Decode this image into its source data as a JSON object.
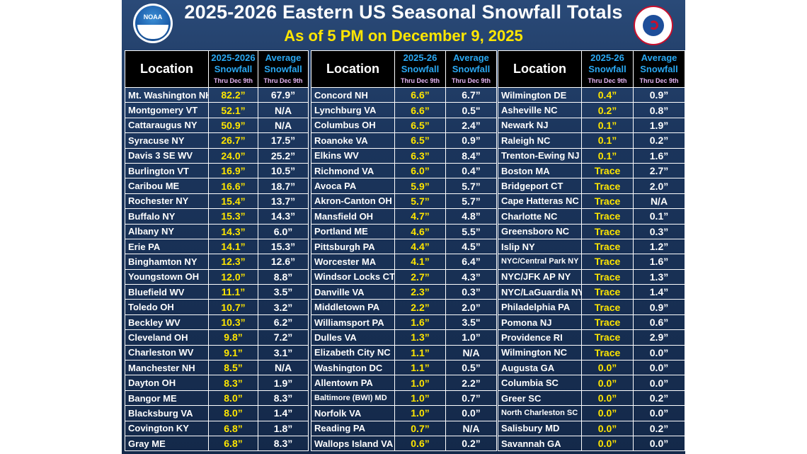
{
  "title": "2025-2026 Eastern US Seasonal Snowfall Totals",
  "subtitle": "As of 5 PM on December 9, 2025",
  "logos": {
    "left": "NOAA",
    "right": "NATIONAL WEATHER SERVICE"
  },
  "colors": {
    "background": "#1b355c",
    "header_bg": "#000000",
    "snow_value": "#ffe600",
    "header_blue": "#2aa8f2",
    "header_pink": "#e7b6f5"
  },
  "panels": [
    {
      "headers": {
        "location": "Location",
        "snow_l1": "2025-2026",
        "snow_l2": "Snowfall",
        "snow_l3": "Thru Dec 9th",
        "avg_l1": "Average",
        "avg_l2": "Snowfall",
        "avg_l3": "Thru Dec 9th"
      },
      "rows": [
        {
          "loc": "Mt. Washington NH",
          "snow": "82.2”",
          "avg": "67.9”"
        },
        {
          "loc": "Montgomery VT",
          "snow": "52.1”",
          "avg": "N/A"
        },
        {
          "loc": "Cattaraugus NY",
          "snow": "50.9”",
          "avg": "N/A"
        },
        {
          "loc": "Syracuse NY",
          "snow": "26.7”",
          "avg": "17.5”"
        },
        {
          "loc": "Davis 3 SE WV",
          "snow": "24.0”",
          "avg": "25.2”"
        },
        {
          "loc": "Burlington VT",
          "snow": "16.9”",
          "avg": "10.5”"
        },
        {
          "loc": "Caribou ME",
          "snow": "16.6”",
          "avg": "18.7”"
        },
        {
          "loc": "Rochester NY",
          "snow": "15.4”",
          "avg": "13.7”"
        },
        {
          "loc": "Buffalo NY",
          "snow": "15.3”",
          "avg": "14.3”"
        },
        {
          "loc": "Albany NY",
          "snow": "14.3”",
          "avg": "6.0”"
        },
        {
          "loc": "Erie PA",
          "snow": "14.1”",
          "avg": "15.3”"
        },
        {
          "loc": "Binghamton NY",
          "snow": "12.3”",
          "avg": "12.6”"
        },
        {
          "loc": "Youngstown OH",
          "snow": "12.0”",
          "avg": "8.8”"
        },
        {
          "loc": "Bluefield WV",
          "snow": "11.1”",
          "avg": "3.5”"
        },
        {
          "loc": "Toledo OH",
          "snow": "10.7”",
          "avg": "3.2”"
        },
        {
          "loc": "Beckley WV",
          "snow": "10.3”",
          "avg": "6.2”"
        },
        {
          "loc": "Cleveland OH",
          "snow": "9.8”",
          "avg": "7.2”"
        },
        {
          "loc": "Charleston WV",
          "snow": "9.1”",
          "avg": "3.1”"
        },
        {
          "loc": "Manchester NH",
          "snow": "8.5”",
          "avg": "N/A"
        },
        {
          "loc": "Dayton OH",
          "snow": "8.3”",
          "avg": "1.9”"
        },
        {
          "loc": "Bangor ME",
          "snow": "8.0”",
          "avg": "8.3”"
        },
        {
          "loc": "Blacksburg VA",
          "snow": "8.0”",
          "avg": "1.4”"
        },
        {
          "loc": "Covington KY",
          "snow": "6.8”",
          "avg": "1.8”"
        },
        {
          "loc": "Gray ME",
          "snow": "6.8”",
          "avg": "8.3”"
        }
      ]
    },
    {
      "headers": {
        "location": "Location",
        "snow_l1": "2025-26",
        "snow_l2": "Snowfall",
        "snow_l3": "Thru Dec 9th",
        "avg_l1": "Average",
        "avg_l2": "Snowfall",
        "avg_l3": "Thru Dec 9th"
      },
      "rows": [
        {
          "loc": "Concord NH",
          "snow": "6.6”",
          "avg": "6.7”"
        },
        {
          "loc": "Lynchburg VA",
          "snow": "6.6”",
          "avg": "0.5\""
        },
        {
          "loc": "Columbus OH",
          "snow": "6.5”",
          "avg": "2.4”"
        },
        {
          "loc": "Roanoke VA",
          "snow": "6.5”",
          "avg": "0.9”"
        },
        {
          "loc": "Elkins WV",
          "snow": "6.3”",
          "avg": "8.4”"
        },
        {
          "loc": "Richmond VA",
          "snow": "6.0”",
          "avg": "0.4”"
        },
        {
          "loc": "Avoca PA",
          "snow": "5.9”",
          "avg": "5.7”"
        },
        {
          "loc": "Akron-Canton OH",
          "snow": "5.7”",
          "avg": "5.7”"
        },
        {
          "loc": "Mansfield OH",
          "snow": "4.7”",
          "avg": "4.8”"
        },
        {
          "loc": "Portland ME",
          "snow": "4.6”",
          "avg": "5.5”"
        },
        {
          "loc": "Pittsburgh PA",
          "snow": "4.4”",
          "avg": "4.5”"
        },
        {
          "loc": "Worcester MA",
          "snow": "4.1”",
          "avg": "6.4”"
        },
        {
          "loc": "Windsor Locks CT",
          "snow": "2.7”",
          "avg": "4.3”"
        },
        {
          "loc": "Danville VA",
          "snow": "2.3”",
          "avg": "0.3”"
        },
        {
          "loc": "Middletown PA",
          "snow": "2.2”",
          "avg": "2.0”"
        },
        {
          "loc": "Williamsport PA",
          "snow": "1.6”",
          "avg": "3.5\""
        },
        {
          "loc": "Dulles VA",
          "snow": "1.3”",
          "avg": "1.0”"
        },
        {
          "loc": "Elizabeth City NC",
          "snow": "1.1”",
          "avg": "N/A"
        },
        {
          "loc": "Washington DC",
          "snow": "1.1”",
          "avg": "0.5”"
        },
        {
          "loc": "Allentown PA",
          "snow": "1.0”",
          "avg": "2.2”"
        },
        {
          "loc": "Baltimore (BWI) MD",
          "snow": "1.0”",
          "avg": "0.7”",
          "small": true
        },
        {
          "loc": "Norfolk VA",
          "snow": "1.0”",
          "avg": "0.0”"
        },
        {
          "loc": "Reading PA",
          "snow": "0.7”",
          "avg": "N/A"
        },
        {
          "loc": "Wallops Island VA",
          "snow": "0.6”",
          "avg": "0.2”"
        }
      ]
    },
    {
      "headers": {
        "location": "Location",
        "snow_l1": "2025-26",
        "snow_l2": "Snowfall",
        "snow_l3": "Thru Dec 9th",
        "avg_l1": "Average",
        "avg_l2": "Snowfall",
        "avg_l3": "Thru Dec 9th"
      },
      "rows": [
        {
          "loc": "Wilmington DE",
          "snow": "0.4”",
          "avg": "0.9”"
        },
        {
          "loc": "Asheville NC",
          "snow": "0.2”",
          "avg": "0.8”"
        },
        {
          "loc": "Newark NJ",
          "snow": "0.1”",
          "avg": "1.9”"
        },
        {
          "loc": "Raleigh NC",
          "snow": "0.1”",
          "avg": "0.2”"
        },
        {
          "loc": "Trenton-Ewing NJ",
          "snow": "0.1”",
          "avg": "1.6”"
        },
        {
          "loc": "Boston MA",
          "snow": "Trace",
          "avg": "2.7”"
        },
        {
          "loc": "Bridgeport CT",
          "snow": "Trace",
          "avg": "2.0”"
        },
        {
          "loc": "Cape Hatteras NC",
          "snow": "Trace",
          "avg": "N/A"
        },
        {
          "loc": "Charlotte NC",
          "snow": "Trace",
          "avg": "0.1”"
        },
        {
          "loc": "Greensboro NC",
          "snow": "Trace",
          "avg": "0.3”"
        },
        {
          "loc": "Islip NY",
          "snow": "Trace",
          "avg": "1.2”"
        },
        {
          "loc": "NYC/Central Park NY",
          "snow": "Trace",
          "avg": "1.6”",
          "small": true
        },
        {
          "loc": "NYC/JFK AP NY",
          "snow": "Trace",
          "avg": "1.3”"
        },
        {
          "loc": "NYC/LaGuardia NY",
          "snow": "Trace",
          "avg": "1.4”"
        },
        {
          "loc": "Philadelphia PA",
          "snow": "Trace",
          "avg": "0.9”"
        },
        {
          "loc": "Pomona NJ",
          "snow": "Trace",
          "avg": "0.6”"
        },
        {
          "loc": "Providence RI",
          "snow": "Trace",
          "avg": "2.9”"
        },
        {
          "loc": "Wilmington NC",
          "snow": "Trace",
          "avg": "0.0”"
        },
        {
          "loc": "Augusta GA",
          "snow": "0.0”",
          "avg": "0.0”"
        },
        {
          "loc": "Columbia SC",
          "snow": "0.0”",
          "avg": "0.0”"
        },
        {
          "loc": "Greer SC",
          "snow": "0.0”",
          "avg": "0.2”"
        },
        {
          "loc": "North Charleston SC",
          "snow": "0.0”",
          "avg": "0.0”",
          "small": true
        },
        {
          "loc": "Salisbury MD",
          "snow": "0.0”",
          "avg": "0.2”"
        },
        {
          "loc": "Savannah GA",
          "snow": "0.0”",
          "avg": "0.0”"
        }
      ]
    }
  ]
}
